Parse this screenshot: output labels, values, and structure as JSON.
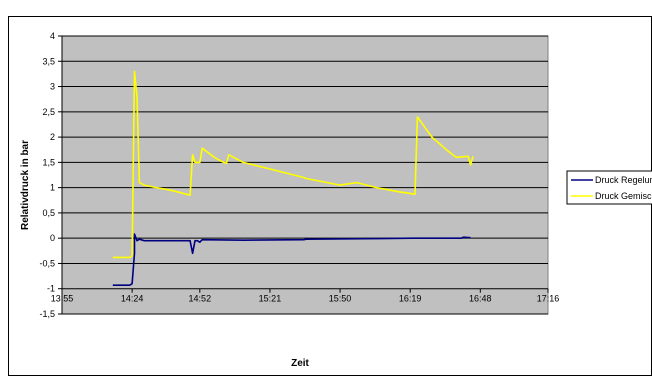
{
  "chart_data": {
    "type": "line",
    "title": "",
    "xlabel": "Zeit",
    "ylabel": "Relativdruck in bar",
    "xlim": [
      "13:55",
      "17:16"
    ],
    "ylim": [
      -1.5,
      4
    ],
    "x_ticks": [
      "13:55",
      "14:24",
      "14:52",
      "15:21",
      "15:50",
      "16:19",
      "16:48",
      "17:16"
    ],
    "y_ticks": [
      "-1,5",
      "-1",
      "-0,5",
      "0",
      "0,5",
      "1",
      "1,5",
      "2",
      "2,5",
      "3",
      "3,5",
      "4"
    ],
    "y_tick_values": [
      -1.5,
      -1,
      -0.5,
      0,
      0.5,
      1,
      1.5,
      2,
      2.5,
      3,
      3.5,
      4
    ],
    "grid": true,
    "plot_background": "#c0c0c0",
    "legend_placement": "right",
    "series": [
      {
        "name": "Druck Regelung",
        "color": "#000080",
        "points": [
          [
            "14:16",
            -0.93
          ],
          [
            "14:23",
            -0.93
          ],
          [
            "14:24",
            -0.9
          ],
          [
            "14:25",
            -0.3
          ],
          [
            "14:25",
            0.08
          ],
          [
            "14:26",
            -0.05
          ],
          [
            "14:27",
            -0.02
          ],
          [
            "14:29",
            -0.05
          ],
          [
            "14:48",
            -0.05
          ],
          [
            "14:49",
            -0.3
          ],
          [
            "14:50",
            -0.05
          ],
          [
            "14:51",
            -0.05
          ],
          [
            "14:52",
            -0.08
          ],
          [
            "14:53",
            -0.03
          ],
          [
            "15:10",
            -0.04
          ],
          [
            "15:35",
            -0.03
          ],
          [
            "15:36",
            -0.02
          ],
          [
            "16:00",
            -0.01
          ],
          [
            "16:20",
            0.0
          ],
          [
            "16:40",
            0.0
          ],
          [
            "16:41",
            0.02
          ],
          [
            "16:44",
            0.01
          ]
        ]
      },
      {
        "name": "Druck Gemisch",
        "color": "#ffff00",
        "points": [
          [
            "14:16",
            -0.38
          ],
          [
            "14:23",
            -0.38
          ],
          [
            "14:24",
            -0.35
          ],
          [
            "14:25",
            3.3
          ],
          [
            "14:26",
            2.8
          ],
          [
            "14:27",
            1.1
          ],
          [
            "14:29",
            1.05
          ],
          [
            "14:34",
            1.0
          ],
          [
            "14:40",
            0.95
          ],
          [
            "14:48",
            0.85
          ],
          [
            "14:49",
            1.65
          ],
          [
            "14:50",
            1.5
          ],
          [
            "14:52",
            1.5
          ],
          [
            "14:53",
            1.78
          ],
          [
            "14:58",
            1.6
          ],
          [
            "15:01",
            1.52
          ],
          [
            "15:03",
            1.48
          ],
          [
            "15:04",
            1.65
          ],
          [
            "15:10",
            1.5
          ],
          [
            "15:20",
            1.38
          ],
          [
            "15:35",
            1.2
          ],
          [
            "15:36",
            1.18
          ],
          [
            "15:50",
            1.05
          ],
          [
            "15:57",
            1.1
          ],
          [
            "16:05",
            1.0
          ],
          [
            "16:14",
            0.92
          ],
          [
            "16:21",
            0.87
          ],
          [
            "16:22",
            2.4
          ],
          [
            "16:28",
            2.0
          ],
          [
            "16:34",
            1.75
          ],
          [
            "16:38",
            1.6
          ],
          [
            "16:43",
            1.62
          ],
          [
            "16:44",
            1.45
          ],
          [
            "16:45",
            1.62
          ]
        ]
      }
    ]
  }
}
